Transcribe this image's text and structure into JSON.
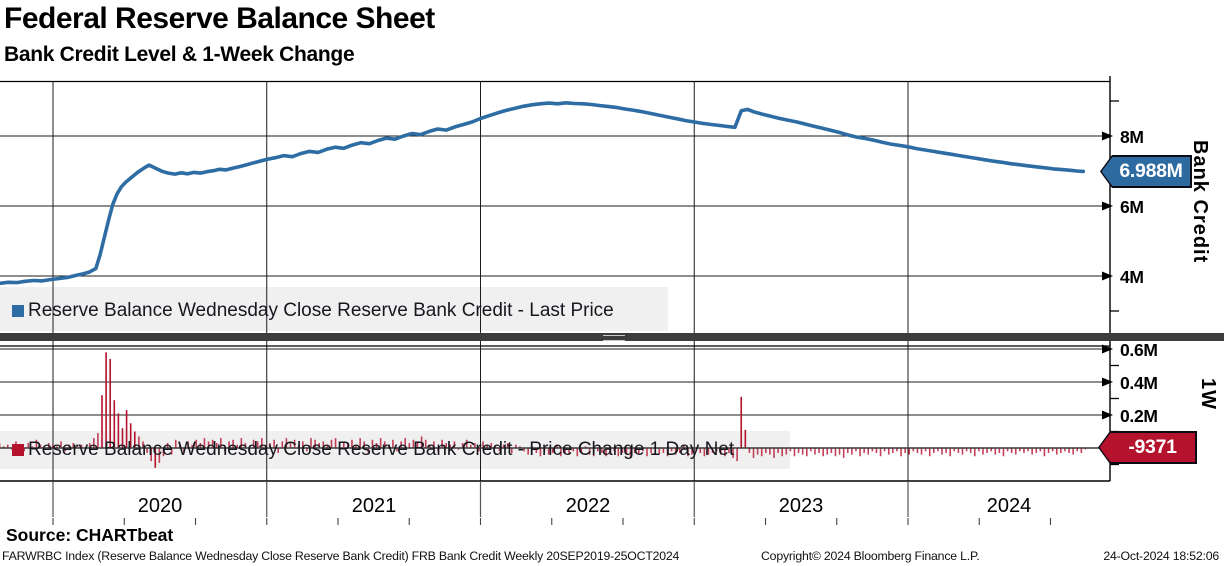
{
  "title": "Federal Reserve Balance Sheet",
  "subtitle": "Bank Credit Level & 1-Week Change",
  "source_label": "Source: CHARTbeat",
  "footer_info": "FARWRBC Index (Reserve Balance Wednesday Close Reserve Bank Credit) FRB Bank Credit  Weekly 20SEP2019-25OCT2024",
  "footer_copyright": "Copyright© 2024 Bloomberg Finance L.P.",
  "footer_datetime": "24-Oct-2024 18:52:06",
  "colors": {
    "line_blue": "#2e6da4",
    "bar_red": "#b5122e",
    "badge_blue_bg": "#2d6a9f",
    "badge_red_bg": "#b5122e",
    "legend_strip": "#f0f0f0",
    "divider": "#3d3d3d",
    "grid": "#1c1c1c"
  },
  "chart_data": [
    {
      "type": "line",
      "panel": "top",
      "name": "Reserve Balance Wednesday Close Reserve Bank Credit - Last Price",
      "axis_label": "Bank Credit",
      "units": "M (USD millions of millions)",
      "last_price_label": "6.988M",
      "last_price_value": 6.988,
      "y_ticks": [
        "8M",
        "6M",
        "4M"
      ],
      "y_tick_values": [
        8,
        6,
        4
      ],
      "y_minor_tick_values": [
        9,
        3
      ],
      "ylim": [
        2.4,
        9.6
      ],
      "x_years": [
        2020,
        2021,
        2022,
        2023,
        2024
      ],
      "x_range": [
        2019.75,
        2024.82
      ],
      "legend_position": "bottom-left-overlay",
      "grid": true,
      "points": [
        [
          2019.75,
          3.79
        ],
        [
          2019.79,
          3.82
        ],
        [
          2019.83,
          3.81
        ],
        [
          2019.87,
          3.85
        ],
        [
          2019.91,
          3.87
        ],
        [
          2019.95,
          3.86
        ],
        [
          2019.99,
          3.9
        ],
        [
          2020.03,
          3.93
        ],
        [
          2020.07,
          3.96
        ],
        [
          2020.11,
          4.02
        ],
        [
          2020.14,
          4.06
        ],
        [
          2020.17,
          4.11
        ],
        [
          2020.2,
          4.21
        ],
        [
          2020.22,
          4.6
        ],
        [
          2020.24,
          5.1
        ],
        [
          2020.26,
          5.6
        ],
        [
          2020.28,
          6.05
        ],
        [
          2020.3,
          6.35
        ],
        [
          2020.32,
          6.55
        ],
        [
          2020.34,
          6.68
        ],
        [
          2020.37,
          6.83
        ],
        [
          2020.4,
          6.98
        ],
        [
          2020.43,
          7.1
        ],
        [
          2020.45,
          7.17
        ],
        [
          2020.48,
          7.08
        ],
        [
          2020.51,
          6.99
        ],
        [
          2020.54,
          6.94
        ],
        [
          2020.57,
          6.91
        ],
        [
          2020.6,
          6.95
        ],
        [
          2020.63,
          6.92
        ],
        [
          2020.66,
          6.96
        ],
        [
          2020.69,
          6.94
        ],
        [
          2020.72,
          6.98
        ],
        [
          2020.75,
          7.01
        ],
        [
          2020.78,
          7.05
        ],
        [
          2020.81,
          7.03
        ],
        [
          2020.84,
          7.08
        ],
        [
          2020.87,
          7.12
        ],
        [
          2020.9,
          7.17
        ],
        [
          2020.93,
          7.22
        ],
        [
          2020.96,
          7.27
        ],
        [
          2021.0,
          7.33
        ],
        [
          2021.04,
          7.38
        ],
        [
          2021.08,
          7.44
        ],
        [
          2021.12,
          7.41
        ],
        [
          2021.16,
          7.5
        ],
        [
          2021.2,
          7.56
        ],
        [
          2021.24,
          7.53
        ],
        [
          2021.28,
          7.62
        ],
        [
          2021.32,
          7.68
        ],
        [
          2021.36,
          7.65
        ],
        [
          2021.4,
          7.74
        ],
        [
          2021.44,
          7.81
        ],
        [
          2021.48,
          7.78
        ],
        [
          2021.52,
          7.87
        ],
        [
          2021.56,
          7.94
        ],
        [
          2021.6,
          7.91
        ],
        [
          2021.64,
          8.0
        ],
        [
          2021.68,
          8.07
        ],
        [
          2021.72,
          8.04
        ],
        [
          2021.76,
          8.13
        ],
        [
          2021.8,
          8.2
        ],
        [
          2021.84,
          8.17
        ],
        [
          2021.88,
          8.26
        ],
        [
          2021.92,
          8.33
        ],
        [
          2021.96,
          8.4
        ],
        [
          2022.0,
          8.5
        ],
        [
          2022.04,
          8.58
        ],
        [
          2022.08,
          8.66
        ],
        [
          2022.12,
          8.73
        ],
        [
          2022.16,
          8.79
        ],
        [
          2022.2,
          8.85
        ],
        [
          2022.24,
          8.89
        ],
        [
          2022.28,
          8.92
        ],
        [
          2022.32,
          8.94
        ],
        [
          2022.36,
          8.92
        ],
        [
          2022.4,
          8.95
        ],
        [
          2022.44,
          8.93
        ],
        [
          2022.48,
          8.92
        ],
        [
          2022.52,
          8.9
        ],
        [
          2022.56,
          8.87
        ],
        [
          2022.6,
          8.84
        ],
        [
          2022.64,
          8.81
        ],
        [
          2022.68,
          8.77
        ],
        [
          2022.72,
          8.73
        ],
        [
          2022.76,
          8.69
        ],
        [
          2022.8,
          8.64
        ],
        [
          2022.84,
          8.59
        ],
        [
          2022.88,
          8.54
        ],
        [
          2022.92,
          8.49
        ],
        [
          2022.96,
          8.44
        ],
        [
          2023.0,
          8.4
        ],
        [
          2023.04,
          8.36
        ],
        [
          2023.08,
          8.33
        ],
        [
          2023.12,
          8.3
        ],
        [
          2023.16,
          8.27
        ],
        [
          2023.19,
          8.25
        ],
        [
          2023.22,
          8.72
        ],
        [
          2023.25,
          8.76
        ],
        [
          2023.28,
          8.69
        ],
        [
          2023.32,
          8.62
        ],
        [
          2023.36,
          8.56
        ],
        [
          2023.4,
          8.5
        ],
        [
          2023.44,
          8.45
        ],
        [
          2023.48,
          8.4
        ],
        [
          2023.52,
          8.34
        ],
        [
          2023.56,
          8.28
        ],
        [
          2023.6,
          8.22
        ],
        [
          2023.64,
          8.16
        ],
        [
          2023.68,
          8.1
        ],
        [
          2023.72,
          8.03
        ],
        [
          2023.76,
          7.97
        ],
        [
          2023.8,
          7.93
        ],
        [
          2023.84,
          7.88
        ],
        [
          2023.88,
          7.82
        ],
        [
          2023.92,
          7.77
        ],
        [
          2023.96,
          7.73
        ],
        [
          2024.0,
          7.69
        ],
        [
          2024.04,
          7.64
        ],
        [
          2024.08,
          7.6
        ],
        [
          2024.12,
          7.56
        ],
        [
          2024.16,
          7.52
        ],
        [
          2024.2,
          7.48
        ],
        [
          2024.24,
          7.44
        ],
        [
          2024.28,
          7.4
        ],
        [
          2024.32,
          7.36
        ],
        [
          2024.36,
          7.32
        ],
        [
          2024.4,
          7.28
        ],
        [
          2024.44,
          7.25
        ],
        [
          2024.48,
          7.21
        ],
        [
          2024.52,
          7.18
        ],
        [
          2024.56,
          7.15
        ],
        [
          2024.6,
          7.12
        ],
        [
          2024.64,
          7.09
        ],
        [
          2024.68,
          7.06
        ],
        [
          2024.72,
          7.04
        ],
        [
          2024.76,
          7.02
        ],
        [
          2024.79,
          7.0
        ],
        [
          2024.82,
          6.988
        ]
      ]
    },
    {
      "type": "bar",
      "panel": "bottom",
      "name": "Reserve Balance Wednesday Close Reserve Bank Credit - Price Change 1 Day Net",
      "axis_label": "1W",
      "units": "M per week",
      "last_value_label": "-9371",
      "last_value": -0.009371,
      "y_ticks": [
        "0.6M",
        "0.4M",
        "0.2M"
      ],
      "y_tick_values": [
        0.6,
        0.4,
        0.2
      ],
      "y_minor_tick_values": [
        0.5,
        0.3,
        0.1,
        -0.1
      ],
      "ylim": [
        -0.2,
        0.62
      ],
      "start_year": 2019.75,
      "week_step": 0.01917,
      "legend_position": "bottom-left-overlay",
      "grid": true,
      "values": [
        0.03,
        0.01,
        0.02,
        -0.01,
        0.04,
        0.02,
        -0.02,
        0.03,
        0.01,
        0.05,
        0.02,
        -0.01,
        0.03,
        0.02,
        0.01,
        0.04,
        -0.02,
        0.02,
        0.03,
        0.01,
        0.02,
        -0.01,
        0.03,
        0.06,
        0.09,
        0.32,
        0.58,
        0.54,
        0.29,
        0.21,
        0.12,
        0.23,
        0.15,
        0.1,
        0.07,
        0.04,
        -0.03,
        -0.08,
        -0.12,
        -0.09,
        -0.05,
        0.03,
        -0.04,
        0.05,
        0.02,
        -0.03,
        0.04,
        0.02,
        0.05,
        0.03,
        0.06,
        0.04,
        0.05,
        0.03,
        0.06,
        -0.02,
        0.04,
        0.05,
        0.02,
        0.06,
        0.03,
        -0.02,
        0.05,
        0.04,
        0.06,
        0.02,
        0.03,
        0.05,
        -0.03,
        0.04,
        0.06,
        0.03,
        0.05,
        0.02,
        0.04,
        -0.02,
        0.06,
        0.05,
        0.03,
        0.04,
        0.02,
        0.05,
        0.06,
        -0.02,
        0.04,
        0.03,
        0.05,
        0.02,
        0.06,
        0.04,
        -0.03,
        0.05,
        0.03,
        0.06,
        0.04,
        0.02,
        0.05,
        -0.02,
        0.04,
        0.06,
        0.03,
        0.05,
        0.04,
        0.07,
        0.05,
        0.02,
        0.04,
        -0.02,
        0.05,
        0.03,
        0.02,
        0.04,
        -0.01,
        0.03,
        0.05,
        0.02,
        0.03,
        -0.02,
        0.04,
        0.02,
        0.03,
        0.01,
        -0.02,
        0.02,
        0.03,
        -0.03,
        0.02,
        0.01,
        -0.02,
        -0.04,
        0.01,
        -0.03,
        -0.05,
        -0.02,
        -0.04,
        -0.03,
        0.02,
        -0.05,
        -0.03,
        -0.04,
        -0.02,
        -0.05,
        -0.03,
        0.01,
        -0.04,
        -0.05,
        -0.02,
        -0.03,
        -0.05,
        -0.04,
        -0.02,
        -0.05,
        -0.03,
        -0.04,
        -0.06,
        -0.03,
        -0.04,
        -0.02,
        -0.05,
        -0.03,
        0.01,
        -0.04,
        -0.03,
        -0.05,
        -0.02,
        -0.04,
        -0.03,
        0.02,
        -0.05,
        -0.04,
        -0.02,
        -0.03,
        -0.05,
        -0.04,
        -0.03,
        -0.02,
        -0.04,
        -0.05,
        -0.03,
        -0.06,
        -0.08,
        0.31,
        0.11,
        -0.03,
        -0.06,
        -0.04,
        -0.05,
        -0.03,
        -0.04,
        -0.06,
        -0.03,
        -0.05,
        -0.04,
        -0.02,
        -0.05,
        -0.03,
        -0.04,
        -0.05,
        -0.02,
        -0.04,
        -0.03,
        -0.05,
        -0.04,
        -0.03,
        -0.05,
        -0.04,
        -0.06,
        -0.03,
        -0.04,
        -0.02,
        -0.05,
        -0.03,
        -0.04,
        -0.02,
        -0.03,
        -0.05,
        -0.02,
        -0.04,
        -0.03,
        -0.02,
        -0.05,
        -0.03,
        -0.04,
        -0.02,
        -0.03,
        -0.04,
        -0.02,
        -0.05,
        -0.03,
        -0.02,
        -0.04,
        -0.03,
        -0.05,
        -0.02,
        -0.03,
        -0.04,
        -0.02,
        -0.03,
        -0.05,
        -0.02,
        -0.04,
        -0.03,
        -0.02,
        -0.04,
        -0.03,
        -0.05,
        -0.02,
        -0.03,
        -0.04,
        -0.02,
        -0.03,
        -0.02,
        -0.04,
        -0.03,
        -0.02,
        -0.05,
        -0.03,
        -0.02,
        -0.04,
        -0.03,
        -0.02,
        -0.03,
        -0.04,
        -0.02,
        -0.03,
        -0.009
      ]
    }
  ]
}
